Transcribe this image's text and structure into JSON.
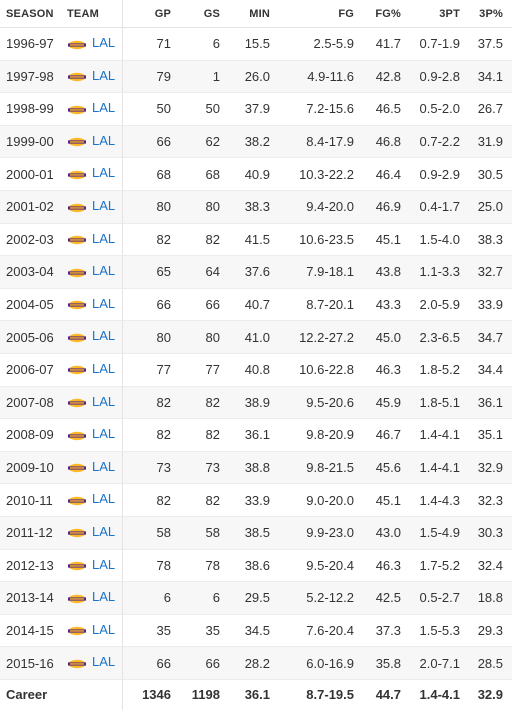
{
  "columns": {
    "season": "SEASON",
    "team": "TEAM",
    "gp": "GP",
    "gs": "GS",
    "min": "MIN",
    "fg": "FG",
    "fgp": "FG%",
    "tp": "3PT",
    "tpp": "3P%"
  },
  "rows": [
    {
      "season": "1996-97",
      "team": "LAL",
      "gp": "71",
      "gs": "6",
      "min": "15.5",
      "fg": "2.5-5.9",
      "fgp": "41.7",
      "tp": "0.7-1.9",
      "tpp": "37.5"
    },
    {
      "season": "1997-98",
      "team": "LAL",
      "gp": "79",
      "gs": "1",
      "min": "26.0",
      "fg": "4.9-11.6",
      "fgp": "42.8",
      "tp": "0.9-2.8",
      "tpp": "34.1"
    },
    {
      "season": "1998-99",
      "team": "LAL",
      "gp": "50",
      "gs": "50",
      "min": "37.9",
      "fg": "7.2-15.6",
      "fgp": "46.5",
      "tp": "0.5-2.0",
      "tpp": "26.7"
    },
    {
      "season": "1999-00",
      "team": "LAL",
      "gp": "66",
      "gs": "62",
      "min": "38.2",
      "fg": "8.4-17.9",
      "fgp": "46.8",
      "tp": "0.7-2.2",
      "tpp": "31.9"
    },
    {
      "season": "2000-01",
      "team": "LAL",
      "gp": "68",
      "gs": "68",
      "min": "40.9",
      "fg": "10.3-22.2",
      "fgp": "46.4",
      "tp": "0.9-2.9",
      "tpp": "30.5"
    },
    {
      "season": "2001-02",
      "team": "LAL",
      "gp": "80",
      "gs": "80",
      "min": "38.3",
      "fg": "9.4-20.0",
      "fgp": "46.9",
      "tp": "0.4-1.7",
      "tpp": "25.0"
    },
    {
      "season": "2002-03",
      "team": "LAL",
      "gp": "82",
      "gs": "82",
      "min": "41.5",
      "fg": "10.6-23.5",
      "fgp": "45.1",
      "tp": "1.5-4.0",
      "tpp": "38.3"
    },
    {
      "season": "2003-04",
      "team": "LAL",
      "gp": "65",
      "gs": "64",
      "min": "37.6",
      "fg": "7.9-18.1",
      "fgp": "43.8",
      "tp": "1.1-3.3",
      "tpp": "32.7"
    },
    {
      "season": "2004-05",
      "team": "LAL",
      "gp": "66",
      "gs": "66",
      "min": "40.7",
      "fg": "8.7-20.1",
      "fgp": "43.3",
      "tp": "2.0-5.9",
      "tpp": "33.9"
    },
    {
      "season": "2005-06",
      "team": "LAL",
      "gp": "80",
      "gs": "80",
      "min": "41.0",
      "fg": "12.2-27.2",
      "fgp": "45.0",
      "tp": "2.3-6.5",
      "tpp": "34.7"
    },
    {
      "season": "2006-07",
      "team": "LAL",
      "gp": "77",
      "gs": "77",
      "min": "40.8",
      "fg": "10.6-22.8",
      "fgp": "46.3",
      "tp": "1.8-5.2",
      "tpp": "34.4"
    },
    {
      "season": "2007-08",
      "team": "LAL",
      "gp": "82",
      "gs": "82",
      "min": "38.9",
      "fg": "9.5-20.6",
      "fgp": "45.9",
      "tp": "1.8-5.1",
      "tpp": "36.1"
    },
    {
      "season": "2008-09",
      "team": "LAL",
      "gp": "82",
      "gs": "82",
      "min": "36.1",
      "fg": "9.8-20.9",
      "fgp": "46.7",
      "tp": "1.4-4.1",
      "tpp": "35.1"
    },
    {
      "season": "2009-10",
      "team": "LAL",
      "gp": "73",
      "gs": "73",
      "min": "38.8",
      "fg": "9.8-21.5",
      "fgp": "45.6",
      "tp": "1.4-4.1",
      "tpp": "32.9"
    },
    {
      "season": "2010-11",
      "team": "LAL",
      "gp": "82",
      "gs": "82",
      "min": "33.9",
      "fg": "9.0-20.0",
      "fgp": "45.1",
      "tp": "1.4-4.3",
      "tpp": "32.3"
    },
    {
      "season": "2011-12",
      "team": "LAL",
      "gp": "58",
      "gs": "58",
      "min": "38.5",
      "fg": "9.9-23.0",
      "fgp": "43.0",
      "tp": "1.5-4.9",
      "tpp": "30.3"
    },
    {
      "season": "2012-13",
      "team": "LAL",
      "gp": "78",
      "gs": "78",
      "min": "38.6",
      "fg": "9.5-20.4",
      "fgp": "46.3",
      "tp": "1.7-5.2",
      "tpp": "32.4"
    },
    {
      "season": "2013-14",
      "team": "LAL",
      "gp": "6",
      "gs": "6",
      "min": "29.5",
      "fg": "5.2-12.2",
      "fgp": "42.5",
      "tp": "0.5-2.7",
      "tpp": "18.8"
    },
    {
      "season": "2014-15",
      "team": "LAL",
      "gp": "35",
      "gs": "35",
      "min": "34.5",
      "fg": "7.6-20.4",
      "fgp": "37.3",
      "tp": "1.5-5.3",
      "tpp": "29.3"
    },
    {
      "season": "2015-16",
      "team": "LAL",
      "gp": "66",
      "gs": "66",
      "min": "28.2",
      "fg": "6.0-16.9",
      "fgp": "35.8",
      "tp": "2.0-7.1",
      "tpp": "28.5"
    }
  ],
  "career": {
    "season": "Career",
    "gp": "1346",
    "gs": "1198",
    "min": "36.1",
    "fg": "8.7-19.5",
    "fgp": "44.7",
    "tp": "1.4-4.1",
    "tpp": "32.9"
  },
  "colors": {
    "link": "#1a73c8",
    "logo_purple": "#552583",
    "logo_gold": "#FDB927",
    "row_alt": "#f7f7f7"
  },
  "icons": {
    "team_logo": "lakers-logo-icon"
  }
}
